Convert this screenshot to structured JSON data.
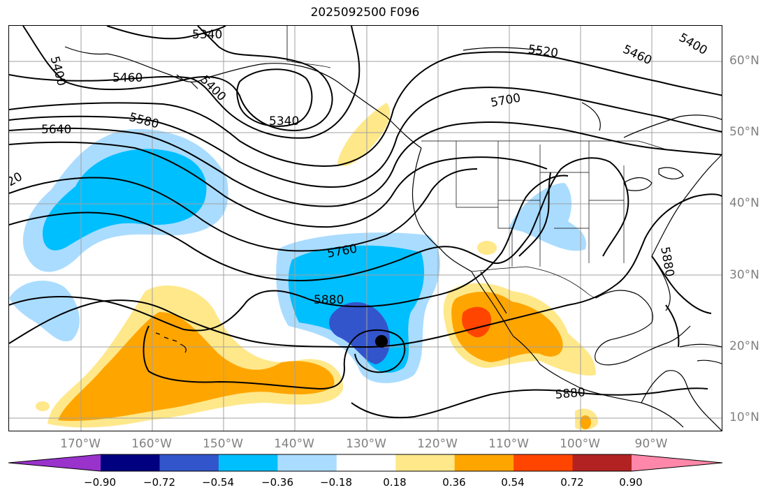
{
  "title": "2025092500 F096",
  "map": {
    "lat_labels": [
      "60°N",
      "50°N",
      "40°N",
      "30°N",
      "20°N",
      "10°N"
    ],
    "lon_labels": [
      "170°W",
      "160°W",
      "150°W",
      "140°W",
      "130°W",
      "120°W",
      "110°W",
      "100°W",
      "90°W"
    ],
    "contour_labels": {
      "a": "5340",
      "b": "5400",
      "c": "5460",
      "d": "5400",
      "e": "5340",
      "f": "5640",
      "g": "5580",
      "h": "20",
      "i": "5520",
      "j": "5460",
      "k": "5400",
      "l": "5700",
      "m": "5760",
      "n": "5880",
      "o": "5880",
      "p": "5880"
    },
    "marker": "storm-center-dot"
  },
  "colorbar": {
    "colors": [
      "#9933cc",
      "#000080",
      "#3355cc",
      "#00bfff",
      "#aadcff",
      "#ffffff",
      "#ffe88a",
      "#ffa500",
      "#ff4500",
      "#b22222",
      "#ff88aa"
    ],
    "tick_labels": [
      "−0.90",
      "−0.72",
      "−0.54",
      "−0.36",
      "−0.18",
      "0.18",
      "0.36",
      "0.54",
      "0.72",
      "0.90"
    ]
  },
  "colors": {
    "light_blue": "#aadcff",
    "blue": "#00bfff",
    "dark_blue": "#3355cc",
    "yellow": "#ffe88a",
    "orange": "#ffa500",
    "red_orange": "#ff4500"
  }
}
